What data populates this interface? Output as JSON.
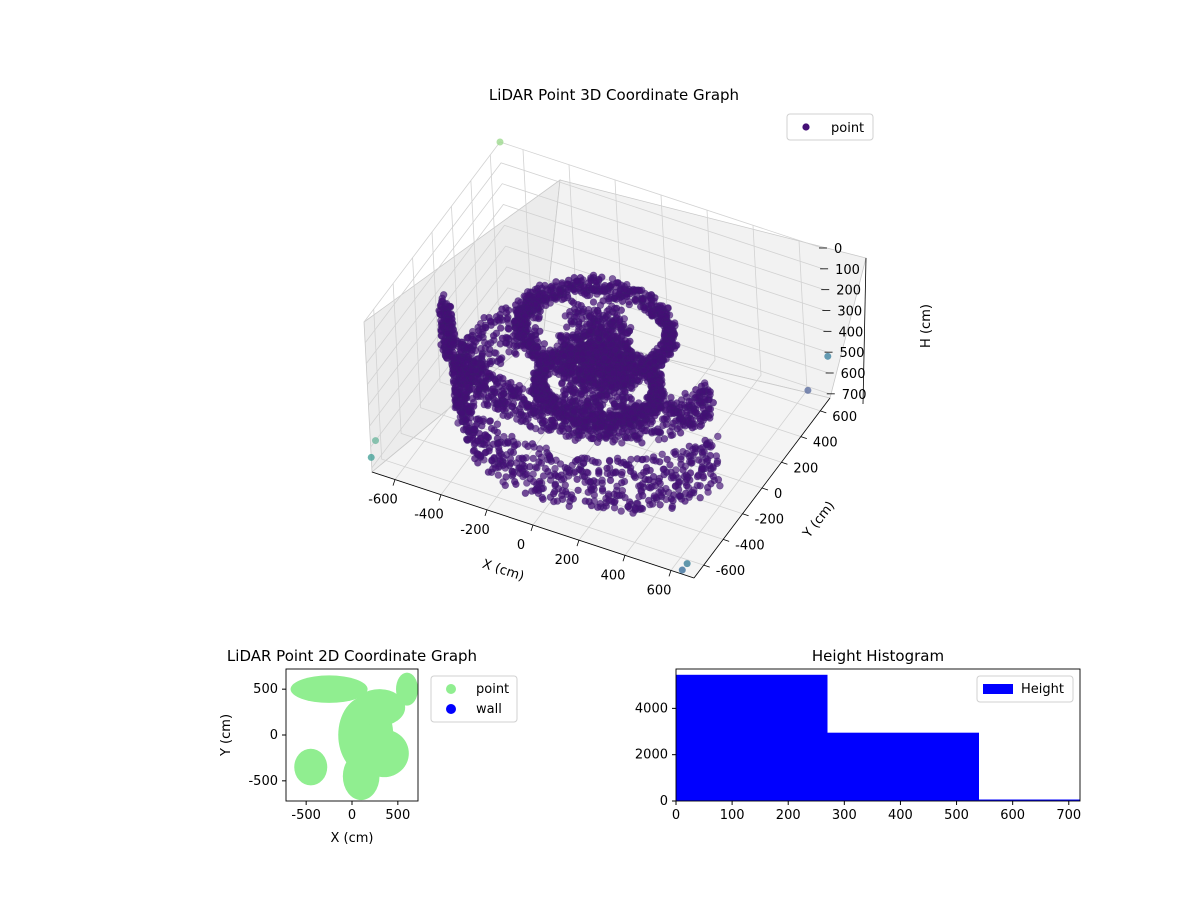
{
  "chart_data": [
    {
      "type": "scatter",
      "projection": "3d",
      "title": "LiDAR Point 3D Coordinate Graph",
      "xlabel": "X (cm)",
      "ylabel": "Y (cm)",
      "zlabel": "H (cm)",
      "xlim": [
        -700,
        700
      ],
      "ylim": [
        -700,
        700
      ],
      "zlim": [
        0,
        720
      ],
      "z_inverted": true,
      "xticks": [
        -600,
        -400,
        -200,
        0,
        200,
        400,
        600
      ],
      "yticks": [
        -600,
        -400,
        -200,
        0,
        200,
        400,
        600
      ],
      "zticks": [
        0,
        100,
        200,
        300,
        400,
        500,
        600,
        700
      ],
      "legend": {
        "entries": [
          "point"
        ],
        "placement": "upper-right"
      },
      "grid": true,
      "colormap": "viridis",
      "series": [
        {
          "name": "point",
          "color": "#440f76",
          "structures": [
            {
              "kind": "ring",
              "radius": 600,
              "h": [
                150,
                320
              ],
              "theta": [
                3.4,
                6.0
              ]
            },
            {
              "kind": "ring",
              "radius": 560,
              "h": [
                440,
                690
              ],
              "theta": [
                2.4,
                6.1
              ]
            },
            {
              "kind": "ring",
              "radius": 300,
              "h": [
                180,
                260
              ],
              "theta": [
                0,
                6.283
              ]
            },
            {
              "kind": "ring",
              "radius": 240,
              "h": [
                450,
                520
              ],
              "theta": [
                0,
                6.283
              ]
            },
            {
              "kind": "column",
              "radius": 150,
              "h": [
                160,
                560
              ]
            }
          ],
          "outliers": [
            {
              "x": -700,
              "y": 700,
              "z": 0
            },
            {
              "x": 700,
              "y": 700,
              "z": 520
            },
            {
              "x": 650,
              "y": -650,
              "z": 700
            },
            {
              "x": -700,
              "y": -700,
              "z": 650
            },
            {
              "x": 650,
              "y": 600,
              "z": 640
            },
            {
              "x": 650,
              "y": -700,
              "z": 700
            },
            {
              "x": -700,
              "y": -650,
              "z": 600
            }
          ]
        }
      ]
    },
    {
      "type": "scatter",
      "title": "LiDAR Point 2D Coordinate Graph",
      "xlabel": "X (cm)",
      "ylabel": "Y (cm)",
      "xlim": [
        -720,
        720
      ],
      "ylim": [
        -720,
        720
      ],
      "xticks": [
        -500,
        0,
        500
      ],
      "yticks": [
        -500,
        0,
        500
      ],
      "legend": {
        "entries": [
          "point",
          "wall"
        ],
        "placement": "outside-right"
      },
      "series": [
        {
          "name": "point",
          "color": "#90ee90",
          "blobs": [
            {
              "x": 150,
              "y": 0,
              "rx": 300,
              "ry": 420
            },
            {
              "x": 350,
              "y": -200,
              "rx": 270,
              "ry": 260
            },
            {
              "x": 300,
              "y": 300,
              "rx": 280,
              "ry": 200
            },
            {
              "x": -250,
              "y": 500,
              "rx": 420,
              "ry": 150
            },
            {
              "x": 600,
              "y": 500,
              "rx": 120,
              "ry": 180
            },
            {
              "x": 100,
              "y": -450,
              "rx": 200,
              "ry": 260
            },
            {
              "x": -450,
              "y": -350,
              "rx": 180,
              "ry": 200
            }
          ]
        },
        {
          "name": "wall",
          "color": "#0000ff",
          "points": []
        }
      ]
    },
    {
      "type": "bar",
      "subtype": "histogram",
      "title": "Height Histogram",
      "xlim": [
        0,
        720
      ],
      "ylim": [
        0,
        5700
      ],
      "xticks": [
        0,
        100,
        200,
        300,
        400,
        500,
        600,
        700
      ],
      "yticks": [
        0,
        2000,
        4000
      ],
      "legend": {
        "entries": [
          "Height"
        ],
        "placement": "upper-right"
      },
      "series": [
        {
          "name": "Height",
          "color": "#0000ff",
          "bins": [
            0,
            270,
            540,
            810
          ],
          "values": [
            5450,
            2950,
            20
          ]
        }
      ]
    }
  ]
}
